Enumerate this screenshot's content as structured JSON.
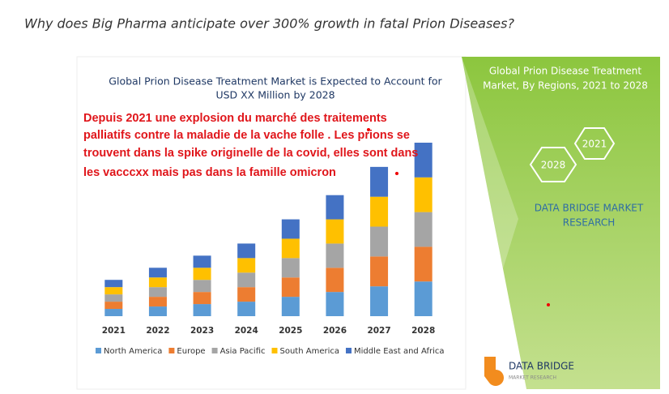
{
  "heading": "Why does Big Pharma anticipate over 300% growth in fatal Prion Diseases?",
  "chart_data": {
    "type": "bar",
    "stacked": true,
    "title": [
      "Global Prion Disease Treatment Market is Expected to Account for",
      "USD XX Million by 2028"
    ],
    "annotation": [
      "Depuis 2021 une explosion du marché des traitements",
      "palliatifs contre la maladie de la vache folle . Les prions  se",
      "trouvent dans la spike originelle de la covid, elles sont dans",
      "les vacccxx mais pas dans la famille omicron"
    ],
    "categories": [
      "2021",
      "2022",
      "2023",
      "2024",
      "2025",
      "2026",
      "2027",
      "2028"
    ],
    "series": [
      {
        "name": "North America",
        "color": "#5b9bd5",
        "values": [
          9,
          12,
          15,
          18,
          24,
          30,
          37,
          43
        ]
      },
      {
        "name": "Europe",
        "color": "#ed7d31",
        "values": [
          9,
          12,
          15,
          18,
          24,
          30,
          37,
          43
        ]
      },
      {
        "name": "Asia Pacific",
        "color": "#a5a5a5",
        "values": [
          9,
          12,
          15,
          18,
          24,
          30,
          37,
          43
        ]
      },
      {
        "name": "South America",
        "color": "#ffc000",
        "values": [
          9,
          12,
          15,
          18,
          24,
          30,
          37,
          43
        ]
      },
      {
        "name": "Middle East and Africa",
        "color": "#4472c4",
        "values": [
          9,
          12,
          15,
          18,
          24,
          30,
          37,
          43
        ]
      }
    ]
  },
  "side_panel": {
    "title": [
      "Global Prion Disease Treatment",
      "Market, By Regions, 2021 to 2028"
    ],
    "hexagons": [
      "2021",
      "2028"
    ],
    "brand": [
      "DATA BRIDGE MARKET",
      "RESEARCH"
    ]
  },
  "logo": {
    "name": "DATA BRIDGE",
    "tagline": "MARKET RESEARCH"
  }
}
